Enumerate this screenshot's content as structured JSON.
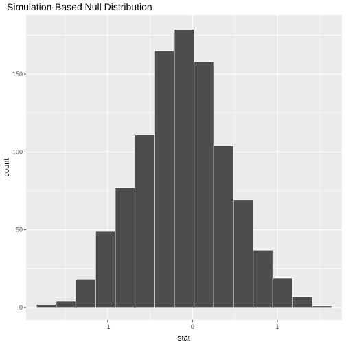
{
  "chart_data": {
    "type": "bar",
    "title": "Simulation-Based Null Distribution",
    "xlabel": "stat",
    "ylabel": "count",
    "bin_width": 0.232,
    "bin_centers": [
      -1.722,
      -1.49,
      -1.258,
      -1.026,
      -0.794,
      -0.562,
      -0.33,
      -0.098,
      0.134,
      0.366,
      0.598,
      0.83,
      1.062,
      1.294,
      1.526,
      1.758
    ],
    "values": [
      2,
      4,
      18,
      49,
      77,
      111,
      165,
      179,
      158,
      104,
      69,
      37,
      19,
      7,
      1,
      0
    ],
    "xlim": [
      -1.96,
      1.76
    ],
    "ylim": [
      -8,
      188
    ],
    "x_ticks": [
      -1,
      0,
      1
    ],
    "x_tick_labels": [
      "-1",
      "0",
      "1"
    ],
    "y_ticks": [
      0,
      50,
      100,
      150
    ],
    "y_tick_labels": [
      "0",
      "50",
      "100",
      "150"
    ],
    "grid": true,
    "legend": "none",
    "colors": {
      "bar_fill": "#4d4d4d",
      "bar_stroke": "#ffffff",
      "panel_bg": "#ebebeb",
      "grid_major": "#ffffff",
      "tick_text": "#4d4d4d"
    }
  }
}
